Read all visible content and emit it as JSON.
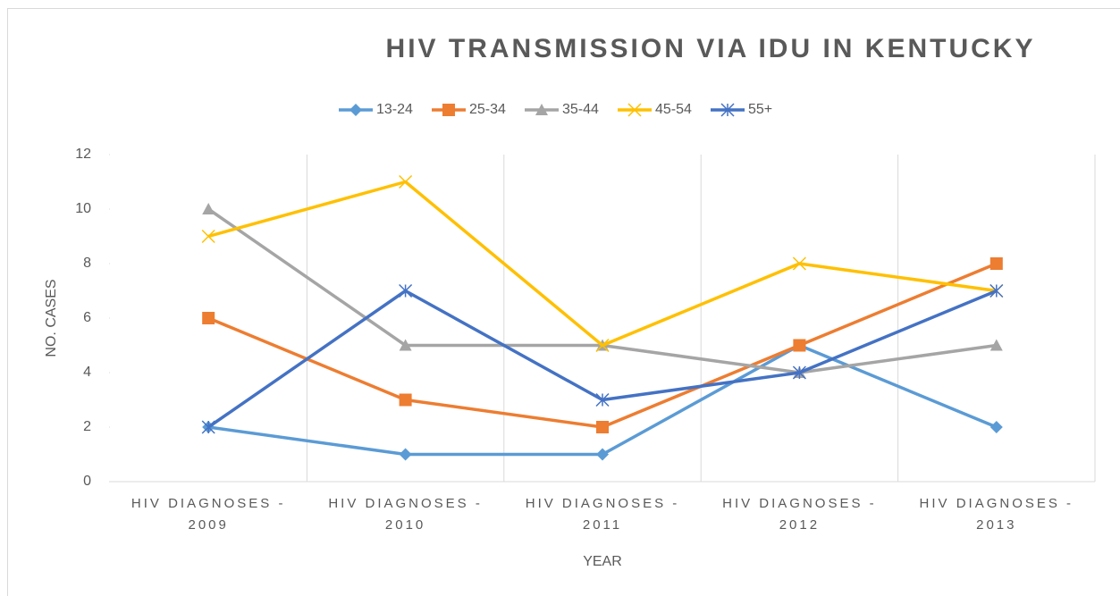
{
  "chart_data": {
    "type": "line",
    "title": "HIV  TRANSMISSION VIA IDU IN KENTUCKY",
    "x_label": "YEAR",
    "y_label": "NO. CASES",
    "categories": [
      "HIV DIAGNOSES - 2009",
      "HIV DIAGNOSES - 2010",
      "HIV DIAGNOSES - 2011",
      "HIV DIAGNOSES - 2012",
      "HIV DIAGNOSES - 2013"
    ],
    "series": [
      {
        "name": "13-24",
        "color": "#5b9bd5",
        "marker": "diamond",
        "values": [
          2,
          1,
          1,
          5,
          2
        ]
      },
      {
        "name": "25-34",
        "color": "#ed7d31",
        "marker": "square",
        "values": [
          6,
          3,
          2,
          5,
          8
        ]
      },
      {
        "name": "35-44",
        "color": "#a5a5a5",
        "marker": "triangle",
        "values": [
          10,
          5,
          5,
          4,
          5
        ]
      },
      {
        "name": "45-54",
        "color": "#ffc000",
        "marker": "x",
        "values": [
          9,
          11,
          5,
          8,
          7
        ]
      },
      {
        "name": "55+",
        "color": "#4472c4",
        "marker": "star",
        "values": [
          2,
          7,
          3,
          4,
          7
        ]
      }
    ],
    "ylim": [
      0,
      12
    ],
    "yticks": [
      0,
      2,
      4,
      6,
      8,
      10,
      12
    ],
    "legend": "top",
    "grid": "vertical"
  }
}
